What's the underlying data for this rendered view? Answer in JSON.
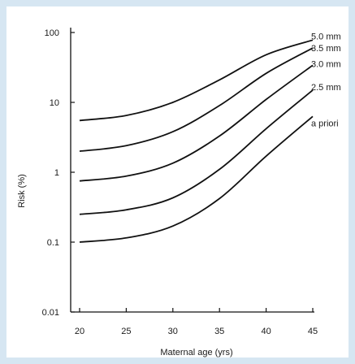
{
  "colors": {
    "background": "#d6e6f2",
    "plot_background": "#ffffff",
    "line": "#111111",
    "axis": "#111111"
  },
  "chart_data": {
    "type": "line",
    "title": "",
    "xlabel": "Maternal age (yrs)",
    "ylabel": "Risk (%)",
    "xlim": [
      20,
      45
    ],
    "ylim": [
      0.01,
      100
    ],
    "yscale": "log",
    "grid": false,
    "legend": "inline labels at right end of each line",
    "xticks": [
      20,
      25,
      30,
      35,
      40,
      45
    ],
    "xtick_labels": [
      "20",
      "25",
      "30",
      "35",
      "40",
      "45"
    ],
    "yticks": [
      0.01,
      0.1,
      1,
      10,
      100
    ],
    "ytick_labels": [
      "0.01",
      "0.1",
      "1",
      "10",
      "100"
    ],
    "x": [
      20,
      25,
      30,
      35,
      40,
      45
    ],
    "series": [
      {
        "name": "5.0 mm",
        "values": [
          5.5,
          6.5,
          10,
          21,
          48,
          78
        ]
      },
      {
        "name": "3.5 mm",
        "values": [
          2.0,
          2.4,
          3.8,
          9,
          26,
          60
        ]
      },
      {
        "name": "3.0 mm",
        "values": [
          0.75,
          0.88,
          1.35,
          3.3,
          11,
          34
        ]
      },
      {
        "name": "2.5 mm",
        "values": [
          0.25,
          0.29,
          0.43,
          1.1,
          4.2,
          15
        ]
      },
      {
        "name": "a priori",
        "values": [
          0.1,
          0.115,
          0.17,
          0.42,
          1.7,
          6.3
        ]
      }
    ]
  }
}
